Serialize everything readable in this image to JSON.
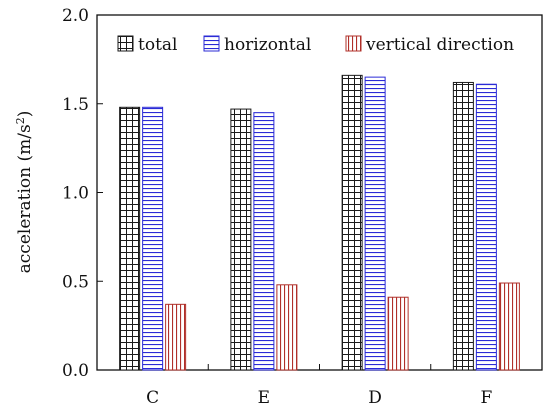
{
  "chart_data": {
    "type": "bar",
    "categories": [
      "C",
      "E",
      "D",
      "F"
    ],
    "series": [
      {
        "name": "total",
        "values": [
          1.48,
          1.47,
          1.66,
          1.62
        ],
        "color": "#1a1a1a",
        "pattern": "grid"
      },
      {
        "name": "horizontal",
        "values": [
          1.48,
          1.45,
          1.65,
          1.61
        ],
        "color": "#2b2bd6",
        "pattern": "horizontal"
      },
      {
        "name": "vertical direction",
        "values": [
          0.37,
          0.48,
          0.41,
          0.49
        ],
        "color": "#b0302a",
        "pattern": "vertical"
      }
    ],
    "ylabel": "acceleration (m/s²)",
    "ylabel_main": "acceleration (m/s",
    "ylabel_sup": "2",
    "ylabel_end": ")",
    "ylim": [
      0,
      2.0
    ],
    "yticks": [
      "0.0",
      "0.5",
      "1.0",
      "1.5",
      "2.0"
    ],
    "grid": false,
    "legend_position": "top"
  }
}
